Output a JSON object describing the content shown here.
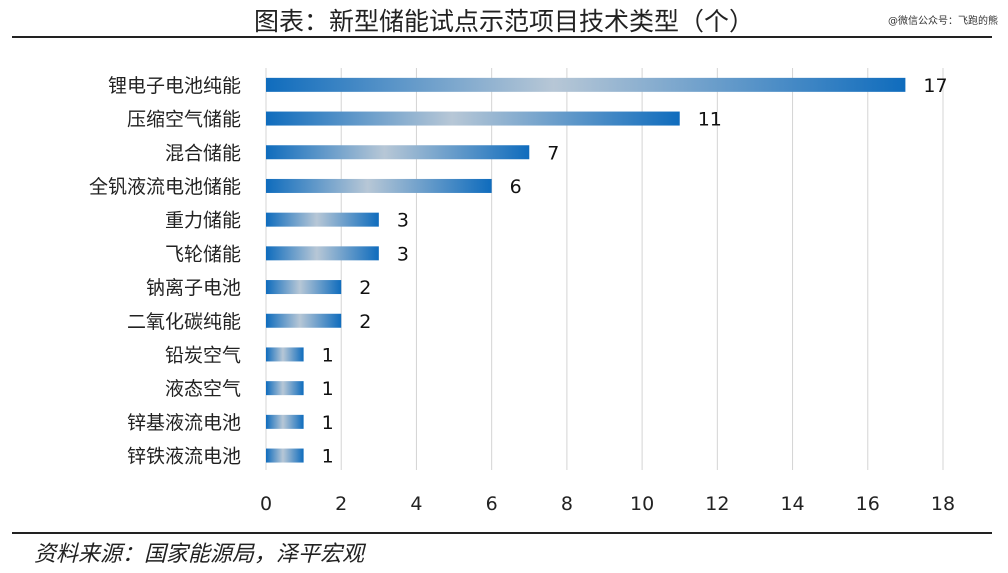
{
  "title": "图表：新型储能试点示范项目技术类型（个）",
  "watermark": "@微信公众号：飞跑的熊",
  "source": "资料来源：国家能源局，泽平宏观",
  "colors": {
    "bar_dark": "#0f6cbd",
    "bar_light": "#b7c7d6",
    "grid": "#d4d4d4",
    "rule": "#222222"
  },
  "chart_data": {
    "type": "bar",
    "orientation": "horizontal",
    "categories": [
      "锂电子电池纯能",
      "压缩空气储能",
      "混合储能",
      "全钒液流电池储能",
      "重力储能",
      "飞轮储能",
      "钠离子电池",
      "二氧化碳纯能",
      "铅炭空气",
      "液态空气",
      "锌基液流电池",
      "锌铁液流电池"
    ],
    "values": [
      17,
      11,
      7,
      6,
      3,
      3,
      2,
      2,
      1,
      1,
      1,
      1
    ],
    "xlim": [
      0,
      18
    ],
    "xticks": [
      "0",
      "2",
      "4",
      "6",
      "8",
      "10",
      "12",
      "14",
      "16",
      "18"
    ],
    "grid": true,
    "legend": "none"
  }
}
